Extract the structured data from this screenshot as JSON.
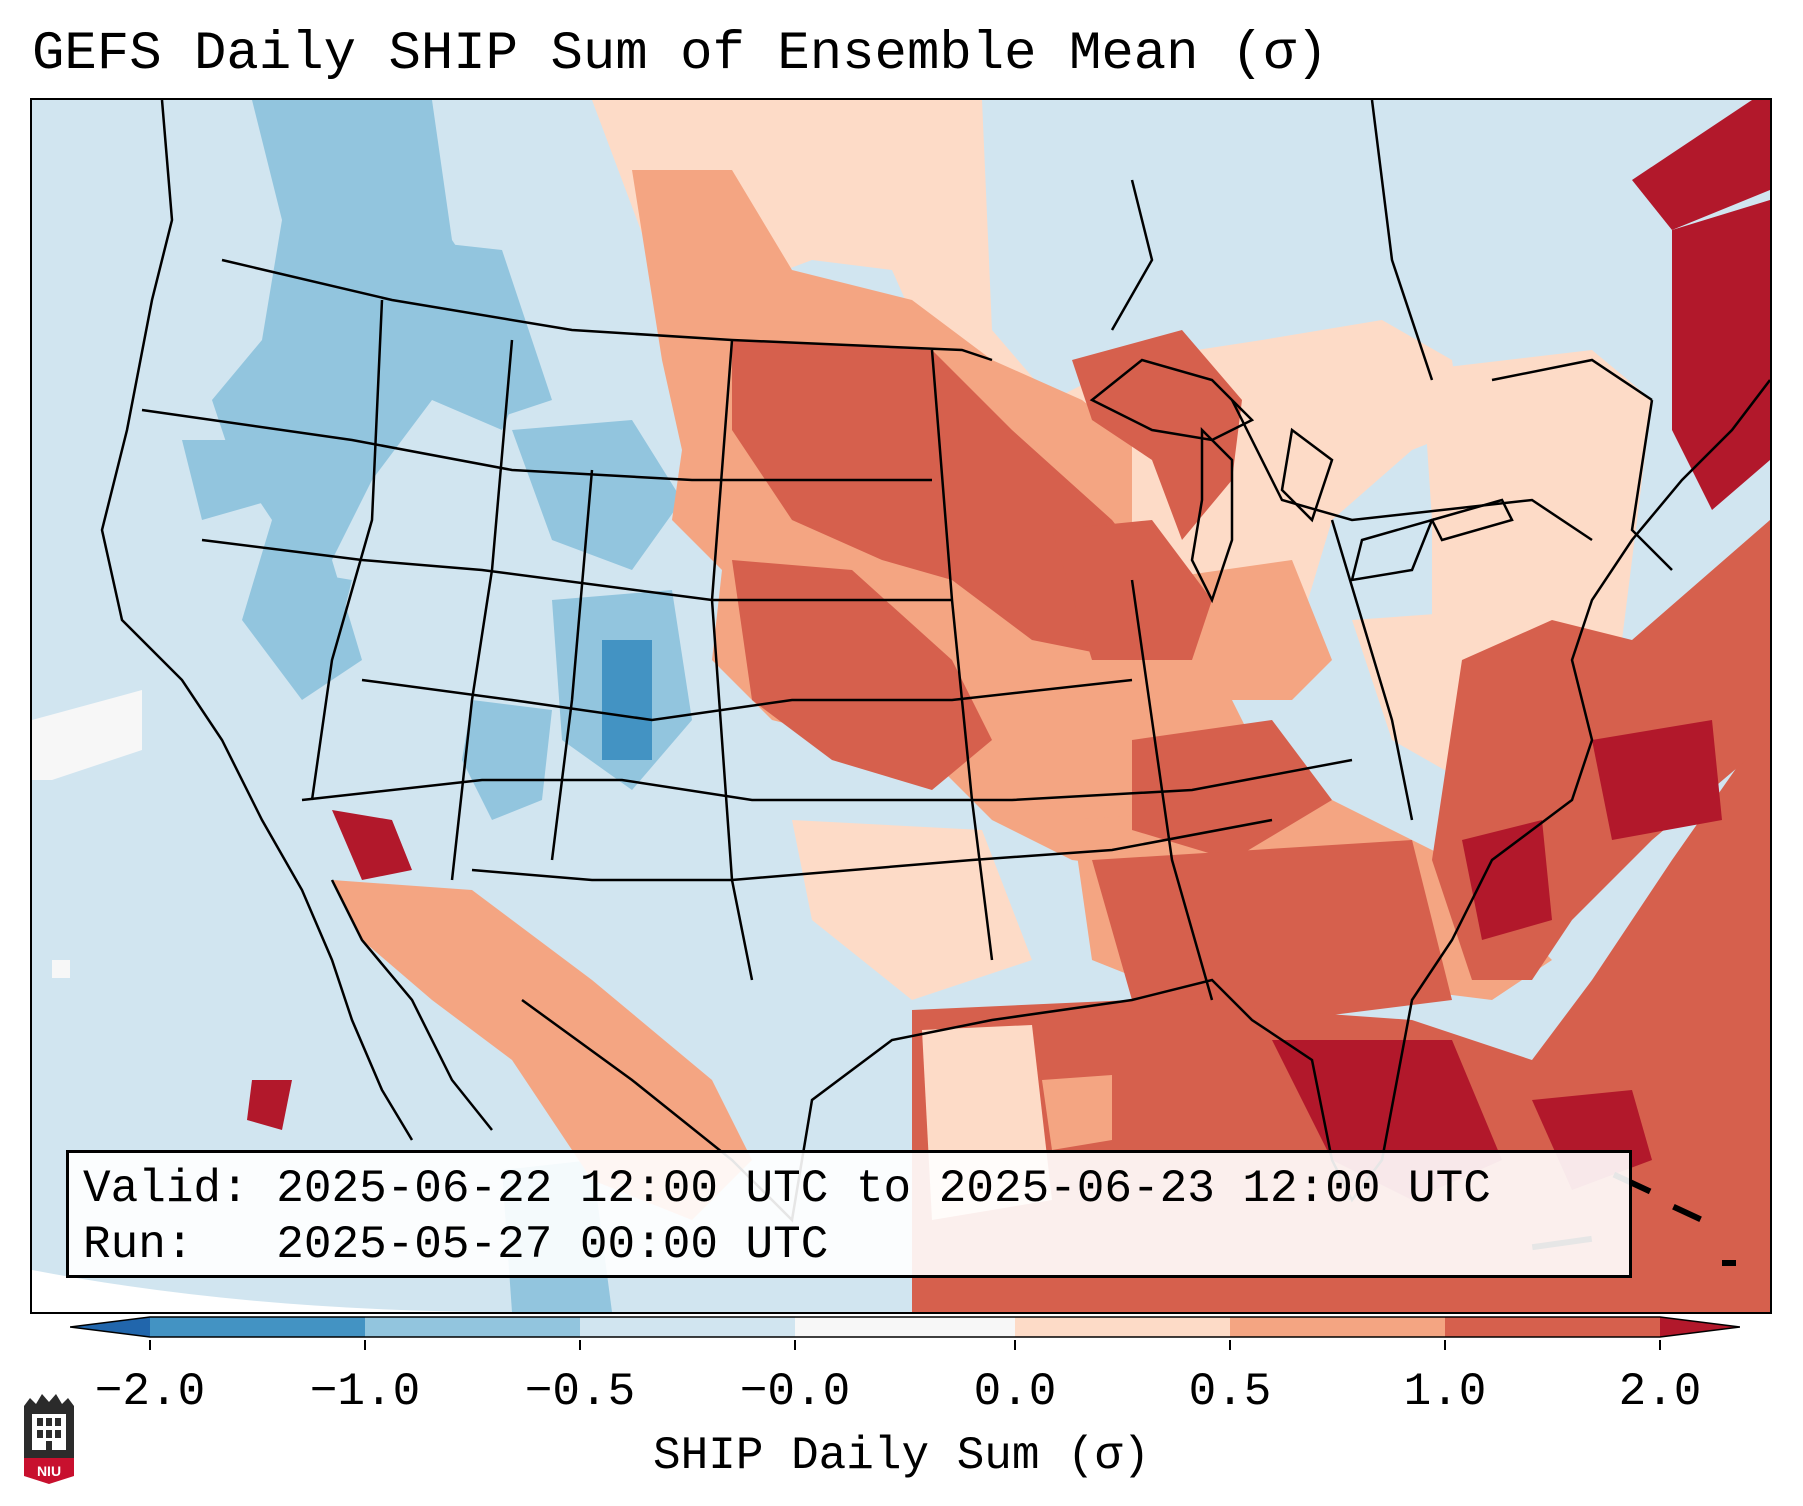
{
  "title": "GEFS Daily SHIP Sum of Ensemble Mean (σ)",
  "info": {
    "valid_label": "Valid:",
    "valid_value": "2025-06-22 12:00 UTC to 2025-06-23 12:00 UTC",
    "run_label": "Run:",
    "run_value": "2025-05-27 00:00 UTC"
  },
  "colorbar": {
    "label": "SHIP Daily Sum (σ)",
    "ticks": [
      "−2.0",
      "−1.0",
      "−0.5",
      "−0.0",
      "0.0",
      "0.5",
      "1.0",
      "2.0"
    ],
    "colors": {
      "under": "#2166ac",
      "neg_2_1": "#4393c3",
      "neg_1_05": "#92c5de",
      "neg_05_0": "#d1e5f0",
      "zero": "#f7f7f7",
      "pos_0_05": "#fddbc7",
      "pos_05_1": "#f4a582",
      "pos_1_2": "#d6604d",
      "over": "#b2182b"
    }
  },
  "logo": {
    "text": "NIU",
    "accent": "#c8102e"
  }
}
